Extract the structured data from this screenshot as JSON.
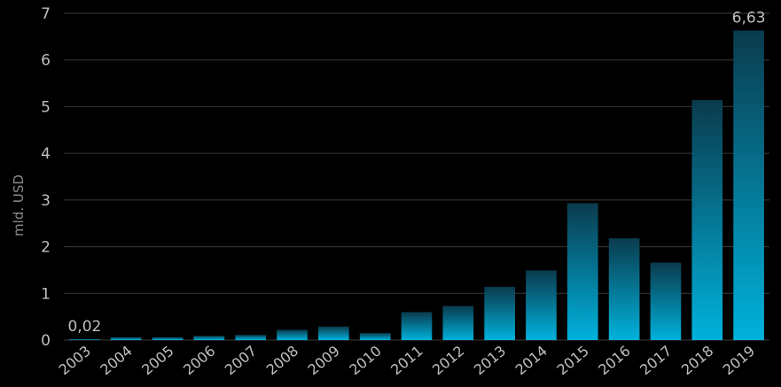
{
  "chart_data": {
    "type": "bar",
    "ylabel": "mld.  USD",
    "ylim": [
      0,
      7
    ],
    "yticks": [
      "0",
      "1",
      "2",
      "3",
      "4",
      "5",
      "6",
      "7"
    ],
    "grid": true,
    "categories": [
      "2003",
      "2004",
      "2005",
      "2006",
      "2007",
      "2008",
      "2009",
      "2010",
      "2011",
      "2012",
      "2013",
      "2014",
      "2015",
      "2016",
      "2017",
      "2018",
      "2019"
    ],
    "values": [
      0.02,
      0.06,
      0.06,
      0.09,
      0.11,
      0.22,
      0.29,
      0.15,
      0.6,
      0.73,
      1.14,
      1.49,
      2.93,
      2.18,
      1.66,
      5.14,
      6.63
    ],
    "data_labels": [
      {
        "index": 0,
        "text": "0,02"
      },
      {
        "index": 16,
        "text": "6,63"
      }
    ],
    "colors": {
      "background": "#000000",
      "grid": "#3a3a3a",
      "text": "#bfbfbf",
      "bar_top": "#0a3b4d",
      "bar_bottom": "#00b2dc"
    }
  }
}
